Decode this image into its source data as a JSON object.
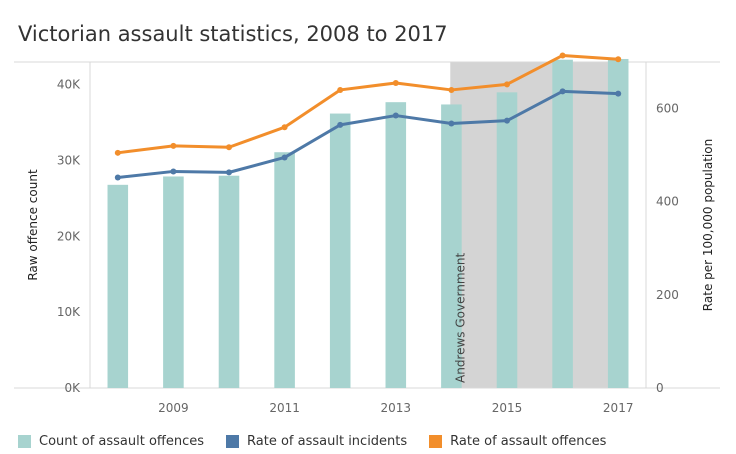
{
  "chart_data": {
    "type": "bar+line",
    "title": "Victorian assault statistics, 2008 to 2017",
    "categories": [
      2008,
      2009,
      2010,
      2011,
      2012,
      2013,
      2014,
      2015,
      2016,
      2017
    ],
    "x_tick_labels": [
      "2009",
      "2011",
      "2013",
      "2015",
      "2017"
    ],
    "ylabel_left": "Raw offence count",
    "ylabel_right": "Rate per 100,000 population",
    "y_left_ticks": [
      "0K",
      "10K",
      "20K",
      "30K",
      "40K"
    ],
    "y_left_range": [
      0,
      43000
    ],
    "y_right_ticks": [
      "0",
      "200",
      "400",
      "600"
    ],
    "y_right_range": [
      0,
      700
    ],
    "annotation": {
      "label": "Andrews Government",
      "start": 2014
    },
    "series": [
      {
        "name": "Count of assault offences",
        "type": "bar",
        "axis": "left",
        "color": "#a7d3cf",
        "values": [
          26800,
          27900,
          28000,
          31100,
          36200,
          37700,
          37400,
          39000,
          43300,
          43400
        ]
      },
      {
        "name": "Rate of assault incidents",
        "type": "line",
        "axis": "right",
        "color": "#4e79a7",
        "values": [
          452,
          465,
          463,
          495,
          565,
          585,
          568,
          574,
          637,
          632
        ]
      },
      {
        "name": "Rate of assault offences",
        "type": "line",
        "axis": "right",
        "color": "#f28e2b",
        "values": [
          505,
          520,
          517,
          560,
          640,
          655,
          640,
          652,
          714,
          706
        ]
      }
    ]
  }
}
